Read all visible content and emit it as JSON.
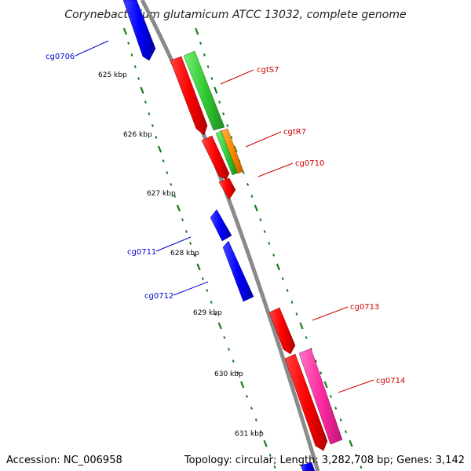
{
  "title": "Corynebacterium glutamicum ATCC 13032, complete genome",
  "accession": "Accession: NC_006958",
  "topology": "Topology: circular; Length: 3,282,708 bp; Genes: 3,142",
  "scale": {
    "tick_labels": [
      "625 kbp",
      "626 kbp",
      "627 kbp",
      "628 kbp",
      "629 kbp",
      "630 kbp",
      "631 kbp"
    ]
  },
  "colors": {
    "backbone": "#8a8a8a",
    "forward_cds": "#ff0000",
    "reverse_cds": "#0000ff",
    "rrna": "#33cc33",
    "trna": "#ff8800",
    "pseudo": "#ff2aa0",
    "tick": "#1a7a1a",
    "label_forward": "#cc0000",
    "label_reverse": "#0000cc"
  },
  "genes": [
    {
      "label": "cg0706",
      "strand": "reverse",
      "color": "#0000ff"
    },
    {
      "label": "cgtS7",
      "strand": "forward",
      "color": "#ff0000"
    },
    {
      "label": "cgtR7",
      "strand": "forward",
      "color": "#ff0000"
    },
    {
      "label": "cg0710",
      "strand": "forward",
      "color": "#ff0000"
    },
    {
      "label": "cg0711",
      "strand": "reverse",
      "color": "#0000ff"
    },
    {
      "label": "cg0712",
      "strand": "reverse",
      "color": "#0000ff"
    },
    {
      "label": "cg0713",
      "strand": "forward",
      "color": "#ff0000"
    },
    {
      "label": "cg0714",
      "strand": "forward",
      "color": "#ff0000"
    }
  ]
}
